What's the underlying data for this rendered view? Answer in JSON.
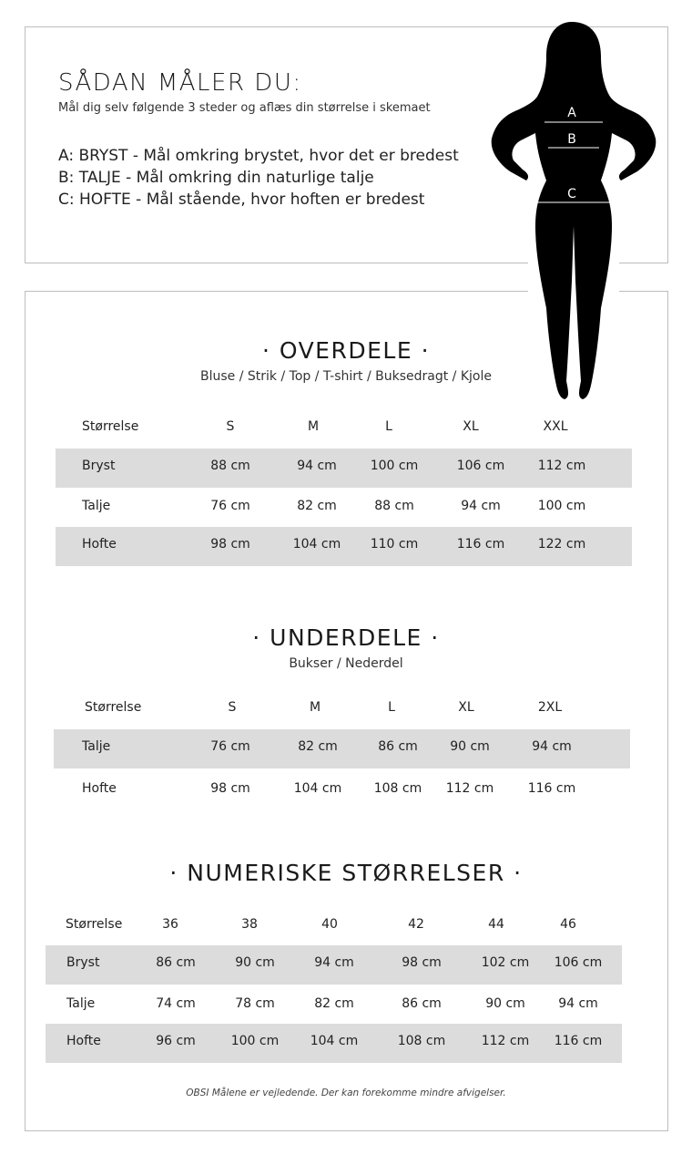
{
  "intro": {
    "title": "SÅDAN MÅLER DU:",
    "subtitle": "Mål dig selv følgende 3 steder og aflæs din størrelse i skemaet",
    "measurements": [
      "A: BRYST - Mål omkring brystet, hvor det er bredest",
      "B: TALJE - Mål omkring din naturlige talje",
      "C: HOFTE - Mål stående, hvor hoften er bredest"
    ],
    "figure_labels": [
      "A",
      "B",
      "C"
    ]
  },
  "overdele": {
    "title": "· OVERDELE ·",
    "subtitle": "Bluse / Strik / Top / T-shirt / Buksedragt / Kjole",
    "header": [
      "Størrelse",
      "S",
      "M",
      "L",
      "XL",
      "XXL"
    ],
    "rows": [
      [
        "Bryst",
        "88 cm",
        "94 cm",
        "100 cm",
        "106 cm",
        "112 cm"
      ],
      [
        "Talje",
        "76 cm",
        "82 cm",
        "88 cm",
        "94 cm",
        "100 cm"
      ],
      [
        "Hofte",
        "98 cm",
        "104 cm",
        "110 cm",
        "116 cm",
        "122 cm"
      ]
    ]
  },
  "underdele": {
    "title": "· UNDERDELE ·",
    "subtitle": "Bukser / Nederdel",
    "header": [
      "Størrelse",
      "S",
      "M",
      "L",
      "XL",
      "2XL"
    ],
    "rows": [
      [
        "Talje",
        "76 cm",
        "82 cm",
        "86 cm",
        "90 cm",
        "94 cm"
      ],
      [
        "Hofte",
        "98 cm",
        "104 cm",
        "108 cm",
        "112 cm",
        "116 cm"
      ]
    ]
  },
  "numeriske": {
    "title": "· NUMERISKE STØRRELSER ·",
    "header": [
      "Størrelse",
      "36",
      "38",
      "40",
      "42",
      "44",
      "46"
    ],
    "rows": [
      [
        "Bryst",
        "86 cm",
        "90 cm",
        "94 cm",
        "98 cm",
        "102 cm",
        "106 cm"
      ],
      [
        "Talje",
        "74 cm",
        "78 cm",
        "82 cm",
        "86 cm",
        "90 cm",
        "94 cm"
      ],
      [
        "Hofte",
        "96 cm",
        "100 cm",
        "104 cm",
        "108 cm",
        "112 cm",
        "116 cm"
      ]
    ]
  },
  "note": "OBSI Målene er vejledende. Der kan forekomme mindre afvigelser.",
  "colors": {
    "band": "#dcdcdc",
    "border": "#bdbdbd",
    "silhouette": "#000000"
  }
}
